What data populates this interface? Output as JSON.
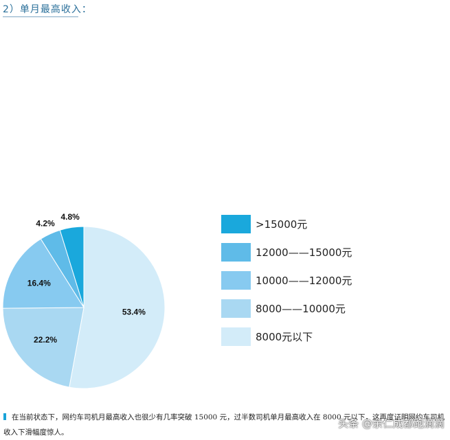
{
  "header": {
    "title": "2）单月最高收入："
  },
  "chart_data": {
    "type": "pie",
    "slices": [
      {
        "label": "8000元以下",
        "value": 53.4,
        "display": "53.4%",
        "color": "#d3ecf9"
      },
      {
        "label": "8000——10000元",
        "value": 22.2,
        "display": "22.2%",
        "color": "#a9d8f2"
      },
      {
        "label": "10000——12000元",
        "value": 16.4,
        "display": "16.4%",
        "color": "#87caf0"
      },
      {
        "label": "12000——15000元",
        "value": 4.2,
        "display": "4.2%",
        "color": "#5fbbe8"
      },
      {
        "label": ">15000元",
        "value": 4.8,
        "display": "4.8%",
        "color": "#1aa8dc"
      }
    ],
    "legend_order": [
      ">15000元",
      "12000——15000元",
      "10000——12000元",
      "8000——10000元",
      "8000元以下"
    ],
    "legend_position": "right"
  },
  "note": {
    "line1": "在当前状态下，网约车司机月最高收入也很少有几率突破 15000 元，过半数司机单月最高收入在 8000 元以下，这再度证明网约车司机",
    "line2": "收入下滑幅度惊人。"
  },
  "watermark": "头条 @余仁成都跑滴滴"
}
